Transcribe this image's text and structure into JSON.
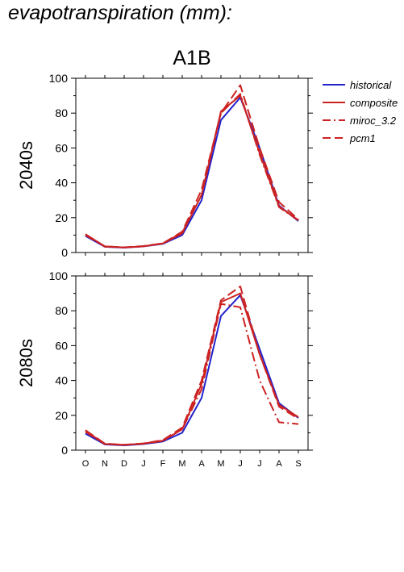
{
  "figure_title": "evapotranspiration (mm):",
  "scenario_label": "A1B",
  "chart_data": [
    {
      "type": "line",
      "row_label": "2040s",
      "categories": [
        "O",
        "N",
        "D",
        "J",
        "F",
        "M",
        "A",
        "M",
        "J",
        "J",
        "A",
        "S"
      ],
      "ylim": [
        0,
        100
      ],
      "yticks": [
        0,
        20,
        40,
        60,
        80,
        100
      ],
      "grid": false,
      "legend_position": "right",
      "series": [
        {
          "name": "historical",
          "color": "#2222cc",
          "dash": "solid",
          "values": [
            9.5,
            3.3,
            2.8,
            3.5,
            5.0,
            10.0,
            30.0,
            76.0,
            89.0,
            60.0,
            27.0,
            18.0
          ]
        },
        {
          "name": "composite",
          "color": "#cc2222",
          "dash": "solid",
          "values": [
            10.5,
            3.5,
            2.9,
            3.6,
            5.2,
            11.0,
            33.0,
            81.0,
            90.0,
            57.0,
            26.5,
            18.5
          ]
        },
        {
          "name": "miroc_3.2",
          "color": "#cc2222",
          "dash": "dashdot",
          "values": [
            10.0,
            3.4,
            2.9,
            3.6,
            5.2,
            11.5,
            33.0,
            80.0,
            91.0,
            56.0,
            26.0,
            18.5
          ]
        },
        {
          "name": "pcm1",
          "color": "#cc2222",
          "dash": "dash",
          "values": [
            10.5,
            3.5,
            3.0,
            3.7,
            5.3,
            12.0,
            36.0,
            80.0,
            96.0,
            60.0,
            29.0,
            19.0
          ]
        }
      ]
    },
    {
      "type": "line",
      "row_label": "2080s",
      "categories": [
        "O",
        "N",
        "D",
        "J",
        "F",
        "M",
        "A",
        "M",
        "J",
        "J",
        "A",
        "S"
      ],
      "ylim": [
        0,
        100
      ],
      "yticks": [
        0,
        20,
        40,
        60,
        80,
        100
      ],
      "grid": false,
      "series": [
        {
          "name": "historical",
          "color": "#2222cc",
          "dash": "solid",
          "values": [
            9.5,
            3.3,
            2.8,
            3.5,
            5.0,
            10.0,
            30.0,
            77.0,
            89.0,
            58.0,
            27.0,
            18.5
          ]
        },
        {
          "name": "composite",
          "color": "#cc2222",
          "dash": "solid",
          "values": [
            11.0,
            3.6,
            3.0,
            3.8,
            5.5,
            12.0,
            38.0,
            85.0,
            90.0,
            55.0,
            26.0,
            19.0
          ]
        },
        {
          "name": "miroc_3.2",
          "color": "#cc2222",
          "dash": "dashdot",
          "values": [
            10.5,
            3.5,
            3.0,
            3.7,
            5.3,
            12.0,
            35.0,
            84.0,
            82.0,
            40.0,
            16.0,
            15.0
          ]
        },
        {
          "name": "pcm1",
          "color": "#cc2222",
          "dash": "dash",
          "values": [
            11.5,
            3.8,
            3.1,
            3.9,
            5.8,
            13.0,
            40.0,
            86.0,
            94.0,
            55.0,
            25.0,
            18.0
          ]
        }
      ]
    }
  ]
}
